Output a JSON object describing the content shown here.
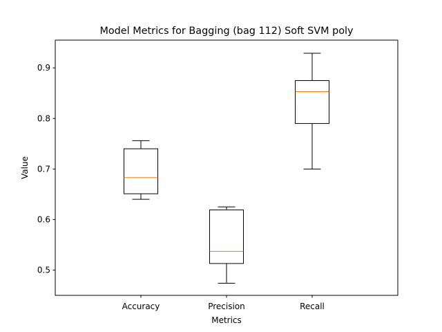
{
  "chart_data": {
    "type": "boxplot",
    "title": "Model Metrics for Bagging (bag 112) Soft SVM poly",
    "xlabel": "Metrics",
    "ylabel": "Value",
    "ylim": [
      0.45,
      0.955
    ],
    "yticks": [
      0.5,
      0.6,
      0.7,
      0.8,
      0.9
    ],
    "ytick_labels": [
      "0.5",
      "0.6",
      "0.7",
      "0.8",
      "0.9"
    ],
    "grid": false,
    "median_color": "#ff7f0e",
    "box_color": "#000000",
    "categories": [
      "Accuracy",
      "Precision",
      "Recall"
    ],
    "boxes": [
      {
        "label": "Accuracy",
        "whisker_low": 0.64,
        "q1": 0.651,
        "median": 0.683,
        "q3": 0.74,
        "whisker_high": 0.756
      },
      {
        "label": "Precision",
        "whisker_low": 0.474,
        "q1": 0.513,
        "median": 0.537,
        "q3": 0.619,
        "whisker_high": 0.625
      },
      {
        "label": "Recall",
        "whisker_low": 0.7,
        "q1": 0.79,
        "median": 0.853,
        "q3": 0.875,
        "whisker_high": 0.929
      }
    ]
  }
}
